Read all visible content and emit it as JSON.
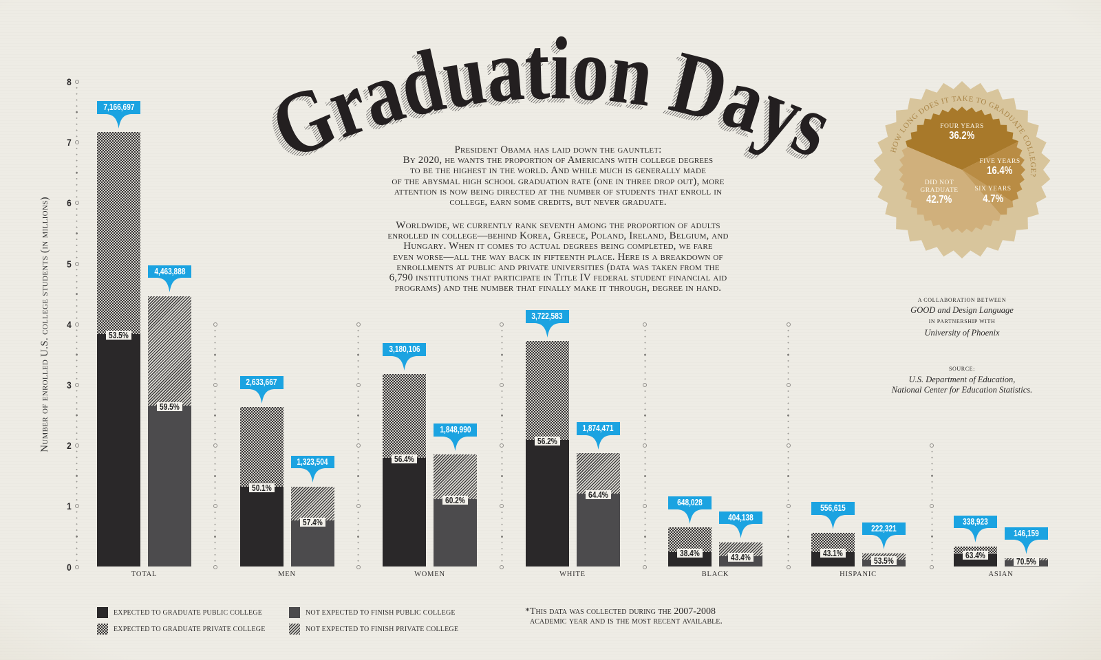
{
  "page": {
    "title": "Graduation Days"
  },
  "intro": {
    "paragraph_1": [
      "President Obama has laid down the gauntlet:",
      "By 2020, he wants the proportion of Americans with college degrees",
      "to be the highest in the world. And while much is generally made",
      "of the abysmal high school graduation rate (one in three drop out), more",
      "attention is now being directed at the number of students that enroll in",
      "college, earn some credits, but never graduate."
    ],
    "paragraph_2": [
      "Worldwide, we currently rank seventh among the proportion of adults",
      "enrolled in college—behind Korea, Greece, Poland, Ireland, Belgium, and",
      "Hungary. When it comes to actual degrees being completed, we fare",
      "even worse—all the way back in fifteenth place. Here is a breakdown of",
      "enrollments at public and private universities (data was taken from the",
      "6,790 institutions that participate in Title IV federal student financial aid",
      "programs) and the number that finally make it through, degree in hand."
    ]
  },
  "chart_data": [
    {
      "type": "bar",
      "variant": "grouped-stacked",
      "title": "Graduation Days",
      "xlabel": "",
      "ylabel": "Number of enrolled U.S. college students (in millions)",
      "ylim": [
        0,
        8
      ],
      "yticks": [
        0,
        1,
        2,
        3,
        4,
        5,
        6,
        7,
        8
      ],
      "ytick_labels": [
        "0",
        "1",
        "2",
        "3",
        "4",
        "5",
        "6",
        "7",
        "8"
      ],
      "grid": false,
      "legend_position": "bottom-left",
      "categories": [
        "TOTAL",
        "MEN",
        "WOMEN",
        "WHITE",
        "BLACK",
        "HISPANIC",
        "ASIAN"
      ],
      "series": [
        {
          "name": "EXPECTED TO GRADUATE PUBLIC COLLEGE",
          "stack": "expected",
          "values": [
            3.834,
            1.319,
            1.794,
            2.092,
            0.249,
            0.24,
            0.215
          ]
        },
        {
          "name": "EXPECTED TO GRADUATE PRIVATE COLLEGE",
          "stack": "expected",
          "values": [
            3.332,
            1.314,
            1.387,
            1.63,
            0.399,
            0.317,
            0.124
          ]
        },
        {
          "name": "NOT EXPECTED TO FINISH PUBLIC COLLEGE",
          "stack": "not_expected",
          "values": [
            2.656,
            0.76,
            1.113,
            1.207,
            0.175,
            0.119,
            0.103
          ]
        },
        {
          "name": "NOT EXPECTED TO FINISH PRIVATE COLLEGE",
          "stack": "not_expected",
          "values": [
            1.808,
            0.564,
            0.736,
            0.667,
            0.229,
            0.103,
            0.043
          ]
        }
      ],
      "groups": [
        {
          "category": "TOTAL",
          "expected": {
            "total": 7166697,
            "total_label": "7,166,697",
            "public_share": 53.5,
            "public_share_label": "53.5%"
          },
          "not_expected": {
            "total": 4463888,
            "total_label": "4,463,888",
            "public_share": 59.5,
            "public_share_label": "59.5%"
          }
        },
        {
          "category": "MEN",
          "expected": {
            "total": 2633667,
            "total_label": "2,633,667",
            "public_share": 50.1,
            "public_share_label": "50.1%"
          },
          "not_expected": {
            "total": 1323504,
            "total_label": "1,323,504",
            "public_share": 57.4,
            "public_share_label": "57.4%"
          }
        },
        {
          "category": "WOMEN",
          "expected": {
            "total": 3180106,
            "total_label": "3,180,106",
            "public_share": 56.4,
            "public_share_label": "56.4%"
          },
          "not_expected": {
            "total": 1848990,
            "total_label": "1,848,990",
            "public_share": 60.2,
            "public_share_label": "60.2%"
          }
        },
        {
          "category": "WHITE",
          "expected": {
            "total": 3722583,
            "total_label": "3,722,583",
            "public_share": 56.2,
            "public_share_label": "56.2%"
          },
          "not_expected": {
            "total": 1874471,
            "total_label": "1,874,471",
            "public_share": 64.4,
            "public_share_label": "64.4%"
          }
        },
        {
          "category": "BLACK",
          "expected": {
            "total": 648028,
            "total_label": "648,028",
            "public_share": 38.4,
            "public_share_label": "38.4%"
          },
          "not_expected": {
            "total": 404138,
            "total_label": "404,138",
            "public_share": 43.4,
            "public_share_label": "43.4%"
          }
        },
        {
          "category": "HISPANIC",
          "expected": {
            "total": 556615,
            "total_label": "556,615",
            "public_share": 43.1,
            "public_share_label": "43.1%"
          },
          "not_expected": {
            "total": 222321,
            "total_label": "222,321",
            "public_share": 53.5,
            "public_share_label": "53.5%"
          }
        },
        {
          "category": "ASIAN",
          "expected": {
            "total": 338923,
            "total_label": "338,923",
            "public_share": 63.4,
            "public_share_label": "63.4%"
          },
          "not_expected": {
            "total": 146159,
            "total_label": "146,159",
            "public_share": 70.5,
            "public_share_label": "70.5%"
          }
        }
      ]
    },
    {
      "type": "pie",
      "title": "HOW LONG DOES IT TAKE TO GRADUATE COLLEGE?",
      "categories": [
        "FOUR YEARS",
        "FIVE YEARS",
        "SIX YEARS",
        "DID NOT GRADUATE"
      ],
      "values": [
        36.2,
        16.4,
        4.7,
        42.7
      ],
      "value_labels": [
        "36.2%",
        "16.4%",
        "4.7%",
        "42.7%"
      ],
      "colors": [
        "#a8792a",
        "#b98c44",
        "#c49d5e",
        "#d0b07c"
      ],
      "unit": "%"
    }
  ],
  "footnote": {
    "lines": [
      "*This data was collected during the 2007-2008",
      "academic year and is the most recent available."
    ]
  },
  "credits": {
    "collab_label": "A COLLABORATION BETWEEN",
    "collab_names": "GOOD and Design Language",
    "partner_label": "IN PARTNERSHIP WITH",
    "partner_name": "University of Phoenix",
    "source_label": "SOURCE:",
    "source_lines": [
      "U.S. Department of Education,",
      "National Center for Education Statistics."
    ]
  },
  "colors": {
    "background": "#eeece5",
    "ink": "#2a2829",
    "callout_blue": "#1ba3e1",
    "bar_public_expected": "#2a2829",
    "bar_public_not_expected": "#4c4b4d",
    "seal_outer": "#d8c59c",
    "seal_text": "#a98548"
  }
}
